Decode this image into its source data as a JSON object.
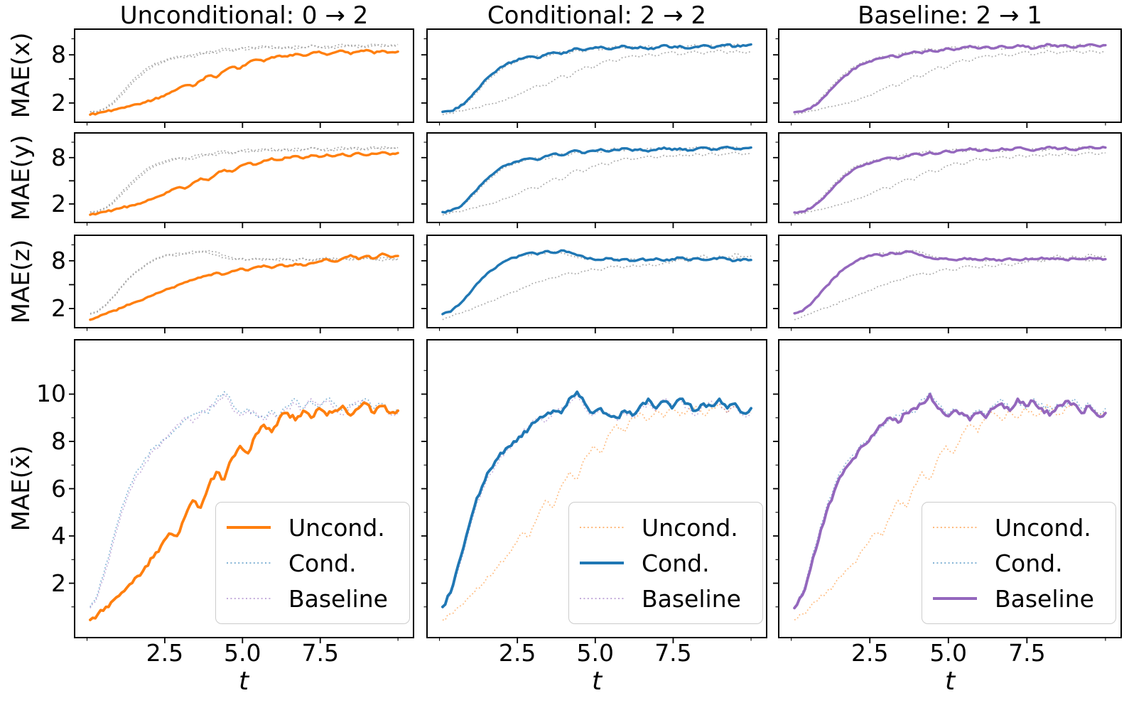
{
  "figure": {
    "background": "#ffffff",
    "xlabel": "t",
    "columns": [
      {
        "title": "Unconditional: 0 → 2",
        "highlight": "uncond"
      },
      {
        "title": "Conditional: 2 → 2",
        "highlight": "cond"
      },
      {
        "title": "Baseline: 2 → 1",
        "highlight": "baseline"
      }
    ],
    "legend_order": [
      "uncond",
      "cond",
      "baseline"
    ],
    "legend_labels": {
      "uncond": "Uncond.",
      "cond": "Cond.",
      "baseline": "Baseline"
    },
    "colors": {
      "uncond": "#ff7f0e",
      "cond": "#1f77b4",
      "baseline": "#9467bd",
      "muted_dotted": "#999999",
      "axis": "#000000"
    }
  },
  "chart_data": [
    {
      "type": "line",
      "ylabel": "MAE(x)",
      "xlim": [
        -0.4,
        10.5
      ],
      "ylim": [
        -0.4,
        11.2
      ],
      "x": {
        "start": 0.1,
        "end": 10.0,
        "n": 40
      },
      "xticks": [
        2.5,
        5.0,
        7.5
      ],
      "xtick_labels": [
        "2.5",
        "5.0",
        "7.5"
      ],
      "xticks_minor": [
        0,
        10
      ],
      "yticks": [
        2,
        8
      ],
      "ytick_labels": [
        "2",
        "8"
      ],
      "yticks_unlabeled": [
        5
      ],
      "yticks_minor": [
        10
      ],
      "series": [
        {
          "name": "Uncond.",
          "key": "uncond",
          "values": [
            0.55,
            0.75,
            0.95,
            1.15,
            1.4,
            1.6,
            1.85,
            2.1,
            2.4,
            2.8,
            3.2,
            3.7,
            4.2,
            4.1,
            4.8,
            5.4,
            5.2,
            6.0,
            6.5,
            6.3,
            7.0,
            7.4,
            7.2,
            7.7,
            7.9,
            7.8,
            8.1,
            7.9,
            8.2,
            8.4,
            8.0,
            8.3,
            8.5,
            8.1,
            8.4,
            8.6,
            8.2,
            8.5,
            8.3,
            8.4
          ]
        },
        {
          "name": "Cond.",
          "key": "cond",
          "values": [
            0.9,
            1.0,
            1.4,
            2.2,
            3.3,
            4.4,
            5.4,
            6.2,
            6.8,
            7.2,
            7.5,
            7.8,
            7.6,
            8.0,
            8.3,
            8.1,
            8.5,
            8.8,
            8.6,
            8.8,
            9.0,
            8.7,
            8.9,
            9.1,
            8.8,
            9.0,
            8.7,
            8.9,
            9.2,
            8.9,
            9.1,
            8.8,
            9.0,
            9.2,
            8.9,
            9.1,
            9.3,
            9.0,
            9.2,
            9.3
          ]
        },
        {
          "name": "Baseline",
          "key": "baseline",
          "values": [
            0.85,
            0.95,
            1.3,
            2.0,
            3.0,
            4.1,
            5.1,
            5.9,
            6.6,
            7.0,
            7.4,
            7.6,
            7.9,
            7.7,
            8.1,
            8.4,
            8.2,
            8.6,
            8.4,
            8.8,
            8.6,
            8.9,
            9.1,
            8.8,
            9.0,
            8.8,
            9.1,
            8.9,
            9.2,
            9.0,
            8.8,
            9.1,
            9.3,
            9.0,
            9.2,
            8.9,
            9.1,
            9.3,
            9.1,
            9.2
          ]
        }
      ]
    },
    {
      "type": "line",
      "ylabel": "MAE(y)",
      "xlim": [
        -0.4,
        10.5
      ],
      "ylim": [
        -0.4,
        11.2
      ],
      "x": {
        "start": 0.1,
        "end": 10.0,
        "n": 40
      },
      "xticks": [
        2.5,
        5.0,
        7.5
      ],
      "xtick_labels": [
        "2.5",
        "5.0",
        "7.5"
      ],
      "xticks_minor": [
        0,
        10
      ],
      "yticks": [
        2,
        8
      ],
      "ytick_labels": [
        "2",
        "8"
      ],
      "yticks_unlabeled": [
        5
      ],
      "yticks_minor": [
        10
      ],
      "series": [
        {
          "name": "Uncond.",
          "key": "uncond",
          "values": [
            0.6,
            0.8,
            1.0,
            1.25,
            1.5,
            1.75,
            2.0,
            2.3,
            2.7,
            3.1,
            3.6,
            4.1,
            4.0,
            4.7,
            5.3,
            5.1,
            5.9,
            6.4,
            6.2,
            6.9,
            7.3,
            7.1,
            7.6,
            7.9,
            7.7,
            8.0,
            8.2,
            7.9,
            8.3,
            8.1,
            8.4,
            8.2,
            8.5,
            8.2,
            8.6,
            8.3,
            8.5,
            8.7,
            8.4,
            8.6
          ]
        },
        {
          "name": "Cond.",
          "key": "cond",
          "values": [
            0.95,
            1.1,
            1.5,
            2.4,
            3.5,
            4.6,
            5.6,
            6.4,
            7.0,
            7.4,
            7.7,
            7.9,
            7.7,
            8.2,
            8.5,
            8.3,
            8.7,
            8.9,
            8.6,
            8.9,
            9.1,
            8.8,
            9.0,
            9.2,
            8.9,
            9.1,
            8.8,
            9.0,
            9.3,
            9.0,
            9.2,
            8.9,
            9.1,
            9.3,
            9.0,
            9.2,
            9.4,
            9.1,
            9.2,
            9.3
          ]
        },
        {
          "name": "Baseline",
          "key": "baseline",
          "values": [
            0.9,
            1.0,
            1.4,
            2.2,
            3.2,
            4.3,
            5.3,
            6.1,
            6.8,
            7.2,
            7.5,
            7.8,
            8.0,
            7.8,
            8.2,
            8.5,
            8.3,
            8.7,
            8.5,
            8.9,
            8.7,
            9.0,
            9.2,
            8.9,
            9.1,
            8.9,
            9.2,
            9.0,
            9.3,
            9.1,
            8.9,
            9.2,
            9.4,
            9.1,
            9.3,
            9.0,
            9.2,
            9.4,
            9.2,
            9.3
          ]
        }
      ]
    },
    {
      "type": "line",
      "ylabel": "MAE(z)",
      "xlim": [
        -0.4,
        10.5
      ],
      "ylim": [
        -0.4,
        11.2
      ],
      "x": {
        "start": 0.1,
        "end": 10.0,
        "n": 40
      },
      "xticks": [
        2.5,
        5.0,
        7.5
      ],
      "xtick_labels": [
        "2.5",
        "5.0",
        "7.5"
      ],
      "xticks_minor": [
        0,
        10
      ],
      "yticks": [
        2,
        8
      ],
      "ytick_labels": [
        "2",
        "8"
      ],
      "yticks_unlabeled": [
        5
      ],
      "yticks_minor": [
        10
      ],
      "series": [
        {
          "name": "Uncond.",
          "key": "uncond",
          "values": [
            0.6,
            0.95,
            1.35,
            1.75,
            2.1,
            2.5,
            2.9,
            3.3,
            3.7,
            4.1,
            4.5,
            4.9,
            5.3,
            5.6,
            5.9,
            6.2,
            6.5,
            6.3,
            6.7,
            7.0,
            6.8,
            7.2,
            7.4,
            7.1,
            7.5,
            7.3,
            7.6,
            7.4,
            7.7,
            7.9,
            8.2,
            7.9,
            8.3,
            8.7,
            8.2,
            8.6,
            8.3,
            8.9,
            8.5,
            8.6
          ]
        },
        {
          "name": "Cond.",
          "key": "cond",
          "values": [
            1.3,
            1.6,
            2.4,
            3.5,
            4.7,
            5.8,
            6.7,
            7.4,
            8.0,
            8.4,
            8.7,
            9.0,
            8.8,
            9.2,
            9.0,
            9.3,
            9.1,
            8.7,
            8.4,
            8.2,
            8.1,
            8.3,
            8.1,
            8.2,
            8.0,
            8.2,
            8.1,
            8.3,
            8.0,
            8.2,
            8.4,
            8.1,
            8.3,
            8.1,
            8.2,
            8.4,
            8.2,
            8.0,
            8.2,
            8.1
          ]
        },
        {
          "name": "Baseline",
          "key": "baseline",
          "values": [
            1.4,
            1.7,
            2.5,
            3.6,
            4.8,
            5.9,
            6.8,
            7.5,
            8.1,
            8.5,
            8.8,
            8.6,
            9.0,
            8.9,
            9.2,
            9.0,
            8.7,
            8.4,
            8.2,
            8.3,
            8.1,
            8.2,
            8.3,
            8.1,
            8.3,
            8.2,
            8.0,
            8.3,
            8.1,
            8.3,
            8.2,
            8.4,
            8.2,
            8.3,
            8.1,
            8.3,
            8.2,
            8.4,
            8.3,
            8.2
          ]
        }
      ]
    },
    {
      "type": "line",
      "ylabel": "MAE(x̄)",
      "xlim": [
        -0.4,
        10.5
      ],
      "ylim": [
        -0.3,
        12.3
      ],
      "x": {
        "start": 0.1,
        "end": 10.0,
        "n": 40
      },
      "xticks": [
        2.5,
        5.0,
        7.5
      ],
      "xtick_labels": [
        "2.5",
        "5.0",
        "7.5"
      ],
      "xticks_minor": [
        0,
        10
      ],
      "yticks": [
        2,
        4,
        6,
        8,
        10
      ],
      "ytick_labels": [
        "2",
        "4",
        "6",
        "8",
        "10"
      ],
      "yticks_unlabeled": [],
      "yticks_minor": [
        1,
        3,
        5,
        7,
        9,
        11
      ],
      "show_legend": true,
      "show_xtick_labels": true,
      "series": [
        {
          "name": "Uncond.",
          "key": "uncond",
          "values": [
            0.45,
            0.7,
            1.0,
            1.3,
            1.6,
            1.95,
            2.3,
            2.7,
            3.1,
            3.6,
            4.1,
            4.0,
            4.8,
            5.5,
            5.2,
            6.1,
            6.7,
            6.4,
            7.3,
            7.8,
            7.5,
            8.3,
            8.7,
            8.4,
            9.0,
            9.2,
            8.9,
            9.3,
            9.0,
            9.4,
            9.1,
            9.3,
            9.5,
            9.1,
            9.4,
            9.6,
            9.2,
            9.5,
            9.2,
            9.3
          ]
        },
        {
          "name": "Cond.",
          "key": "cond",
          "values": [
            1.0,
            1.6,
            2.8,
            4.0,
            5.2,
            6.1,
            6.8,
            7.3,
            7.7,
            8.0,
            8.2,
            8.6,
            8.9,
            9.1,
            9.3,
            9.2,
            9.8,
            10.1,
            9.6,
            9.2,
            9.4,
            9.1,
            9.0,
            9.3,
            9.1,
            9.5,
            9.8,
            9.4,
            9.7,
            9.4,
            9.8,
            9.6,
            9.3,
            9.6,
            9.5,
            9.8,
            9.4,
            9.6,
            9.2,
            9.4
          ]
        },
        {
          "name": "Baseline",
          "key": "baseline",
          "values": [
            0.95,
            1.5,
            2.6,
            3.8,
            5.0,
            5.9,
            6.6,
            7.1,
            7.6,
            7.9,
            8.3,
            8.7,
            9.0,
            8.8,
            9.2,
            9.4,
            9.6,
            10.0,
            9.4,
            9.1,
            9.3,
            9.2,
            8.9,
            9.2,
            9.0,
            9.4,
            9.6,
            9.3,
            9.8,
            9.5,
            9.7,
            9.4,
            9.1,
            9.5,
            9.7,
            9.6,
            9.2,
            9.5,
            9.1,
            9.2
          ]
        }
      ]
    }
  ]
}
